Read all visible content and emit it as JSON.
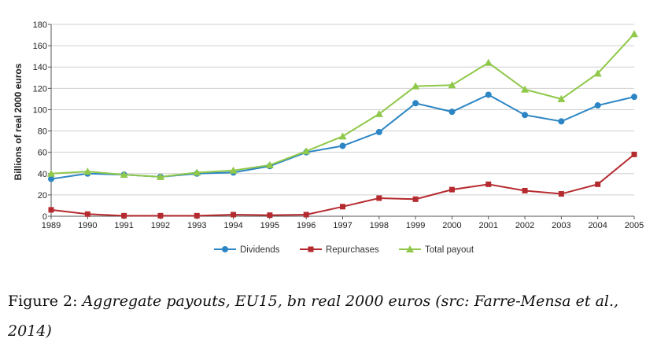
{
  "chart_data": {
    "type": "line",
    "ylabel": "Billions of real 2000 euros",
    "ylim": [
      0,
      180
    ],
    "yticks": [
      0,
      20,
      40,
      60,
      80,
      100,
      120,
      140,
      160,
      180
    ],
    "x": [
      "1989",
      "1990",
      "1991",
      "1992",
      "1993",
      "1994",
      "1995",
      "1996",
      "1997",
      "1998",
      "1999",
      "2000",
      "2001",
      "2002",
      "2003",
      "2004",
      "2005"
    ],
    "grid": "horizontal",
    "legend_position": "bottom",
    "series": [
      {
        "name": "Dividends",
        "color": "#2b85c4",
        "marker": "circle",
        "values": [
          35,
          40,
          39,
          37,
          40,
          41,
          47,
          60,
          66,
          79,
          106,
          98,
          114,
          95,
          89,
          104,
          112
        ]
      },
      {
        "name": "Repurchases",
        "color": "#b52a2e",
        "marker": "square",
        "values": [
          6,
          2,
          0.5,
          0.5,
          0.5,
          1.5,
          1,
          1.5,
          9,
          17,
          16,
          25,
          30,
          24,
          21,
          30,
          58
        ]
      },
      {
        "name": "Total payout",
        "color": "#8fc84a",
        "marker": "triangle",
        "values": [
          40,
          42,
          39,
          37,
          41,
          43,
          48,
          61,
          75,
          96,
          122,
          123,
          144,
          119,
          110,
          134,
          171
        ]
      }
    ]
  },
  "caption": {
    "label": "Figure 2:",
    "text": "Aggregate payouts, EU15, bn real 2000 euros (src: Farre-Mensa et al., 2014)"
  }
}
